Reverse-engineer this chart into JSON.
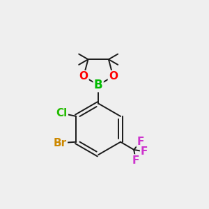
{
  "background_color": "#efefef",
  "bond_color": "#1a1a1a",
  "bond_width": 1.4,
  "atom_colors": {
    "B": "#00bb00",
    "O": "#ff0000",
    "Cl": "#22bb00",
    "Br": "#cc8800",
    "F": "#cc33cc"
  },
  "atom_fontsizes": {
    "B": 12,
    "O": 11,
    "Cl": 11,
    "Br": 11,
    "F": 11
  }
}
